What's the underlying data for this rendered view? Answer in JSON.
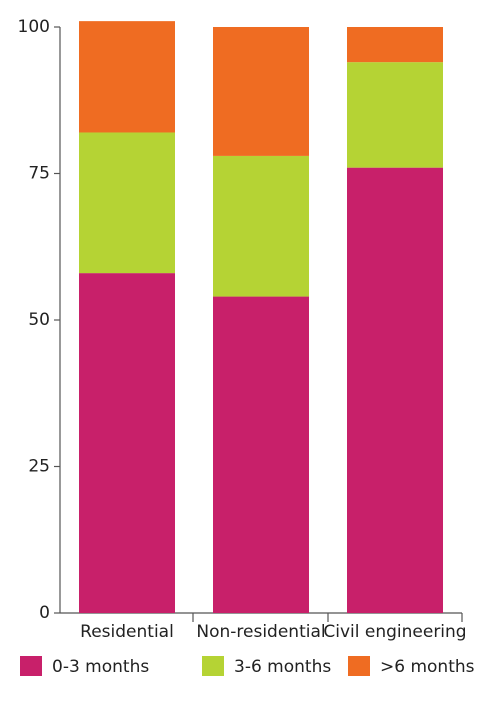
{
  "chart_data": {
    "type": "stacked-bar",
    "categories": [
      "Residential",
      "Non-residential",
      "Civil engineering"
    ],
    "series": [
      {
        "name": "0-3 months",
        "color": "#c8206a",
        "values": [
          58,
          54,
          76
        ]
      },
      {
        "name": "3-6 months",
        "color": "#b5d334",
        "values": [
          24,
          24,
          18
        ]
      },
      {
        "name": ">6 months",
        "color": "#ef6c22",
        "values": [
          19,
          22,
          6
        ]
      }
    ],
    "ylim": [
      0,
      100
    ],
    "yticks": [
      0,
      25,
      50,
      75,
      100
    ]
  }
}
